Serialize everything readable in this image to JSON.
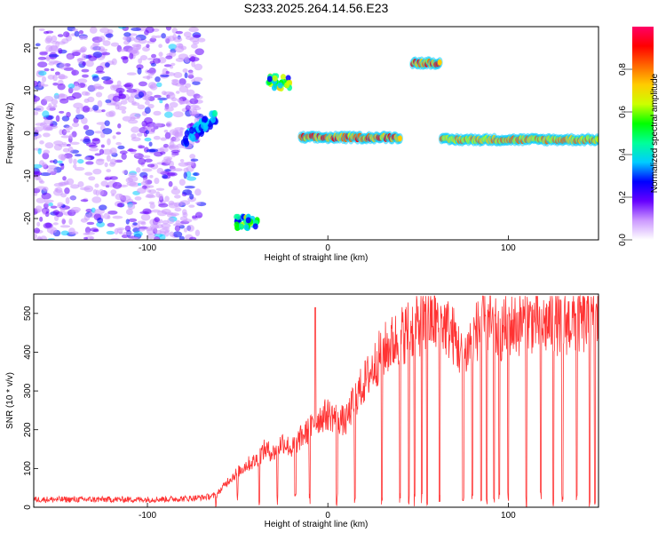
{
  "title": "S233.2025.264.14.56.E23",
  "chart_data": [
    {
      "type": "heatmap",
      "xlabel": "Height of straight line (km)",
      "ylabel": "Frequency (Hz)",
      "xlim": [
        -163,
        150
      ],
      "ylim": [
        -25,
        25
      ],
      "xticks": [
        -100,
        0,
        100
      ],
      "yticks": [
        -20,
        -10,
        0,
        10,
        20
      ],
      "colorbar": {
        "label": "Normalized spectral amplitude",
        "range": [
          0,
          1
        ],
        "ticks": [
          "0.0",
          "0.2",
          "0.4",
          "0.6",
          "0.8"
        ],
        "tick_values": [
          0,
          0.2,
          0.4,
          0.6,
          0.8
        ],
        "colors": [
          "#ffffff",
          "#cc99ff",
          "#6600ff",
          "#0000ff",
          "#00ccff",
          "#00ff99",
          "#00ff00",
          "#ccff00",
          "#ffcc00",
          "#ff6600",
          "#ff0000",
          "#ff0066"
        ]
      },
      "features": [
        {
          "name": "noise-region",
          "x_range": [
            -163,
            -70
          ],
          "y_range": [
            -25,
            25
          ],
          "amplitude": 0.15
        },
        {
          "name": "blob-upper",
          "x": -27,
          "y": 12,
          "amplitude": 0.5
        },
        {
          "name": "blob-lower",
          "x": -45,
          "y": -21,
          "amplitude": 0.45
        },
        {
          "name": "diagonal-rise",
          "x_range": [
            -80,
            -62
          ],
          "y_range": [
            -2,
            4
          ],
          "amplitude": 0.35
        },
        {
          "name": "line-center",
          "x_range": [
            -15,
            40
          ],
          "y": -1,
          "amplitude": 0.95
        },
        {
          "name": "line-high",
          "x_range": [
            47,
            62
          ],
          "y": 16.5,
          "amplitude": 0.95
        },
        {
          "name": "line-right",
          "x_range": [
            63,
            150
          ],
          "y": -1.5,
          "amplitude": 0.85
        }
      ]
    },
    {
      "type": "line",
      "xlabel": "Height of straight line (km)",
      "ylabel": "SNR (10 * v/v)",
      "xlim": [
        -163,
        150
      ],
      "ylim": [
        0,
        550
      ],
      "xticks": [
        -100,
        0,
        100
      ],
      "yticks": [
        0,
        100,
        200,
        300,
        400,
        500
      ],
      "series": [
        {
          "name": "SNR",
          "color": "#ff3333",
          "x": [
            -163,
            -140,
            -120,
            -100,
            -80,
            -70,
            -62,
            -55,
            -50,
            -45,
            -40,
            -35,
            -30,
            -25,
            -20,
            -15,
            -10,
            -5,
            0,
            5,
            10,
            15,
            20,
            25,
            30,
            35,
            40,
            45,
            50,
            55,
            60,
            65,
            70,
            75,
            80,
            85,
            90,
            95,
            100,
            105,
            110,
            115,
            120,
            125,
            130,
            135,
            140,
            145,
            150
          ],
          "y": [
            20,
            20,
            20,
            20,
            22,
            25,
            30,
            70,
            90,
            110,
            120,
            150,
            140,
            170,
            150,
            180,
            200,
            230,
            240,
            230,
            220,
            280,
            320,
            360,
            400,
            420,
            440,
            460,
            470,
            480,
            480,
            470,
            440,
            380,
            440,
            470,
            470,
            450,
            470,
            470,
            480,
            480,
            470,
            480,
            470,
            480,
            480,
            470,
            480
          ],
          "drops": [
            -62,
            -50,
            -38,
            -28,
            -18,
            -10,
            5,
            15,
            30,
            40,
            45,
            48,
            52,
            55,
            62,
            75,
            80,
            85,
            88,
            92,
            95,
            100,
            110,
            118,
            125,
            130,
            138,
            145,
            148
          ]
        }
      ]
    }
  ]
}
